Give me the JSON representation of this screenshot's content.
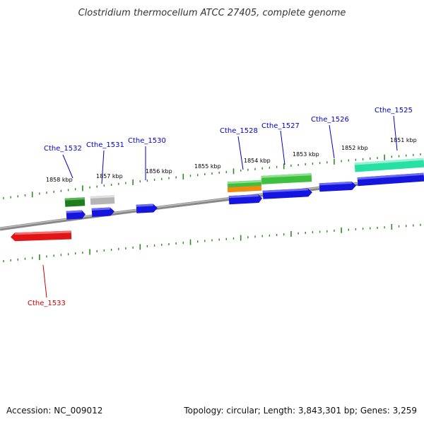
{
  "title": "Clostridium thermocellum ATCC 27405, complete genome",
  "accession": "Accession: NC_009012",
  "summary": "Topology: circular; Length: 3,843,301 bp; Genes: 3,259",
  "colors": {
    "background": "#ffffff",
    "backbone": "#888888",
    "tick": "#2e8b1e",
    "label_forward": "#0000cc",
    "label_reverse": "#cc0000",
    "cds_blue": "#1515e0",
    "rna_dark_green": "#1f7d1f",
    "pseudo_gray": "#b5b5b5",
    "light_green": "#3fbf3f",
    "orange": "#f08c10",
    "teal": "#27e0a4",
    "cds_red": "#e01515"
  },
  "ruler_labels": [
    "1858 kbp",
    "1857 kbp",
    "1856 kbp",
    "1855 kbp",
    "1854 kbp",
    "1853 kbp",
    "1852 kbp",
    "1851 kbp"
  ],
  "gene_labels": [
    {
      "text": "Cthe_1532",
      "strand": "forward"
    },
    {
      "text": "Cthe_1531",
      "strand": "forward"
    },
    {
      "text": "Cthe_1530",
      "strand": "forward"
    },
    {
      "text": "Cthe_1528",
      "strand": "forward"
    },
    {
      "text": "Cthe_1527",
      "strand": "forward"
    },
    {
      "text": "Cthe_1526",
      "strand": "forward"
    },
    {
      "text": "Cthe_1525",
      "strand": "forward"
    },
    {
      "text": "Cthe_1533",
      "strand": "reverse"
    }
  ],
  "features": [
    {
      "name": "cds-1532",
      "color": "cds_blue"
    },
    {
      "name": "rna-1532",
      "color": "rna_dark_green"
    },
    {
      "name": "cds-1531",
      "color": "cds_blue"
    },
    {
      "name": "pseudo-1531",
      "color": "pseudo_gray"
    },
    {
      "name": "cds-1530",
      "color": "cds_blue"
    },
    {
      "name": "cds-1528",
      "color": "cds_blue"
    },
    {
      "name": "orange-1528",
      "color": "orange"
    },
    {
      "name": "green-1528",
      "color": "light_green"
    },
    {
      "name": "green-1527",
      "color": "light_green"
    },
    {
      "name": "cds-1527",
      "color": "cds_blue"
    },
    {
      "name": "cds-1526",
      "color": "cds_blue"
    },
    {
      "name": "cds-1525",
      "color": "cds_blue"
    },
    {
      "name": "teal-1525",
      "color": "teal"
    },
    {
      "name": "cds-1533",
      "color": "cds_red"
    }
  ]
}
